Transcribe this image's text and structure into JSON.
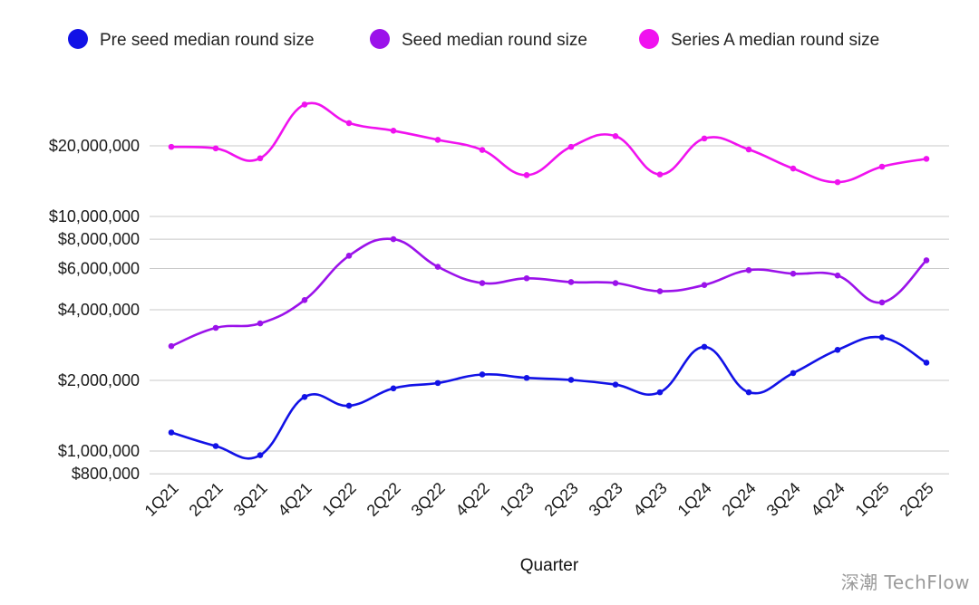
{
  "chart_data": {
    "type": "line",
    "title": "",
    "xlabel": "Quarter",
    "ylabel": "",
    "y_scale": "log",
    "ylim": [
      750000,
      32000000
    ],
    "grid": true,
    "legend_position": "top",
    "categories": [
      "1Q21",
      "2Q21",
      "3Q21",
      "4Q21",
      "1Q22",
      "2Q22",
      "3Q22",
      "4Q22",
      "1Q23",
      "2Q23",
      "3Q23",
      "4Q23",
      "1Q24",
      "2Q24",
      "3Q24",
      "4Q24",
      "1Q25",
      "2Q25"
    ],
    "y_ticks": [
      {
        "value": 800000,
        "label": "$800,000"
      },
      {
        "value": 1000000,
        "label": "$1,000,000"
      },
      {
        "value": 2000000,
        "label": "$2,000,000"
      },
      {
        "value": 4000000,
        "label": "$4,000,000"
      },
      {
        "value": 6000000,
        "label": "$6,000,000"
      },
      {
        "value": 8000000,
        "label": "$8,000,000"
      },
      {
        "value": 10000000,
        "label": "$10,000,000"
      },
      {
        "value": 20000000,
        "label": "$20,000,000"
      }
    ],
    "series": [
      {
        "name": "Pre seed median round size",
        "color": "#1212e6",
        "values": [
          1200000,
          1050000,
          960000,
          1700000,
          1560000,
          1850000,
          1950000,
          2120000,
          2050000,
          2010000,
          1920000,
          1780000,
          2780000,
          1780000,
          2150000,
          2700000,
          3050000,
          2380000
        ]
      },
      {
        "name": "Seed median round size",
        "color": "#9b12ea",
        "values": [
          2800000,
          3350000,
          3500000,
          4400000,
          6800000,
          8000000,
          6100000,
          5200000,
          5450000,
          5250000,
          5200000,
          4800000,
          5100000,
          5900000,
          5700000,
          5600000,
          4300000,
          6500000
        ]
      },
      {
        "name": "Series A median round size",
        "color": "#f012ef",
        "values": [
          19800000,
          19500000,
          17700000,
          30000000,
          25000000,
          23200000,
          21200000,
          19200000,
          15000000,
          19800000,
          22000000,
          15100000,
          21500000,
          19300000,
          16000000,
          14000000,
          16300000,
          17600000
        ]
      }
    ]
  },
  "watermark": "深潮 TechFlow"
}
